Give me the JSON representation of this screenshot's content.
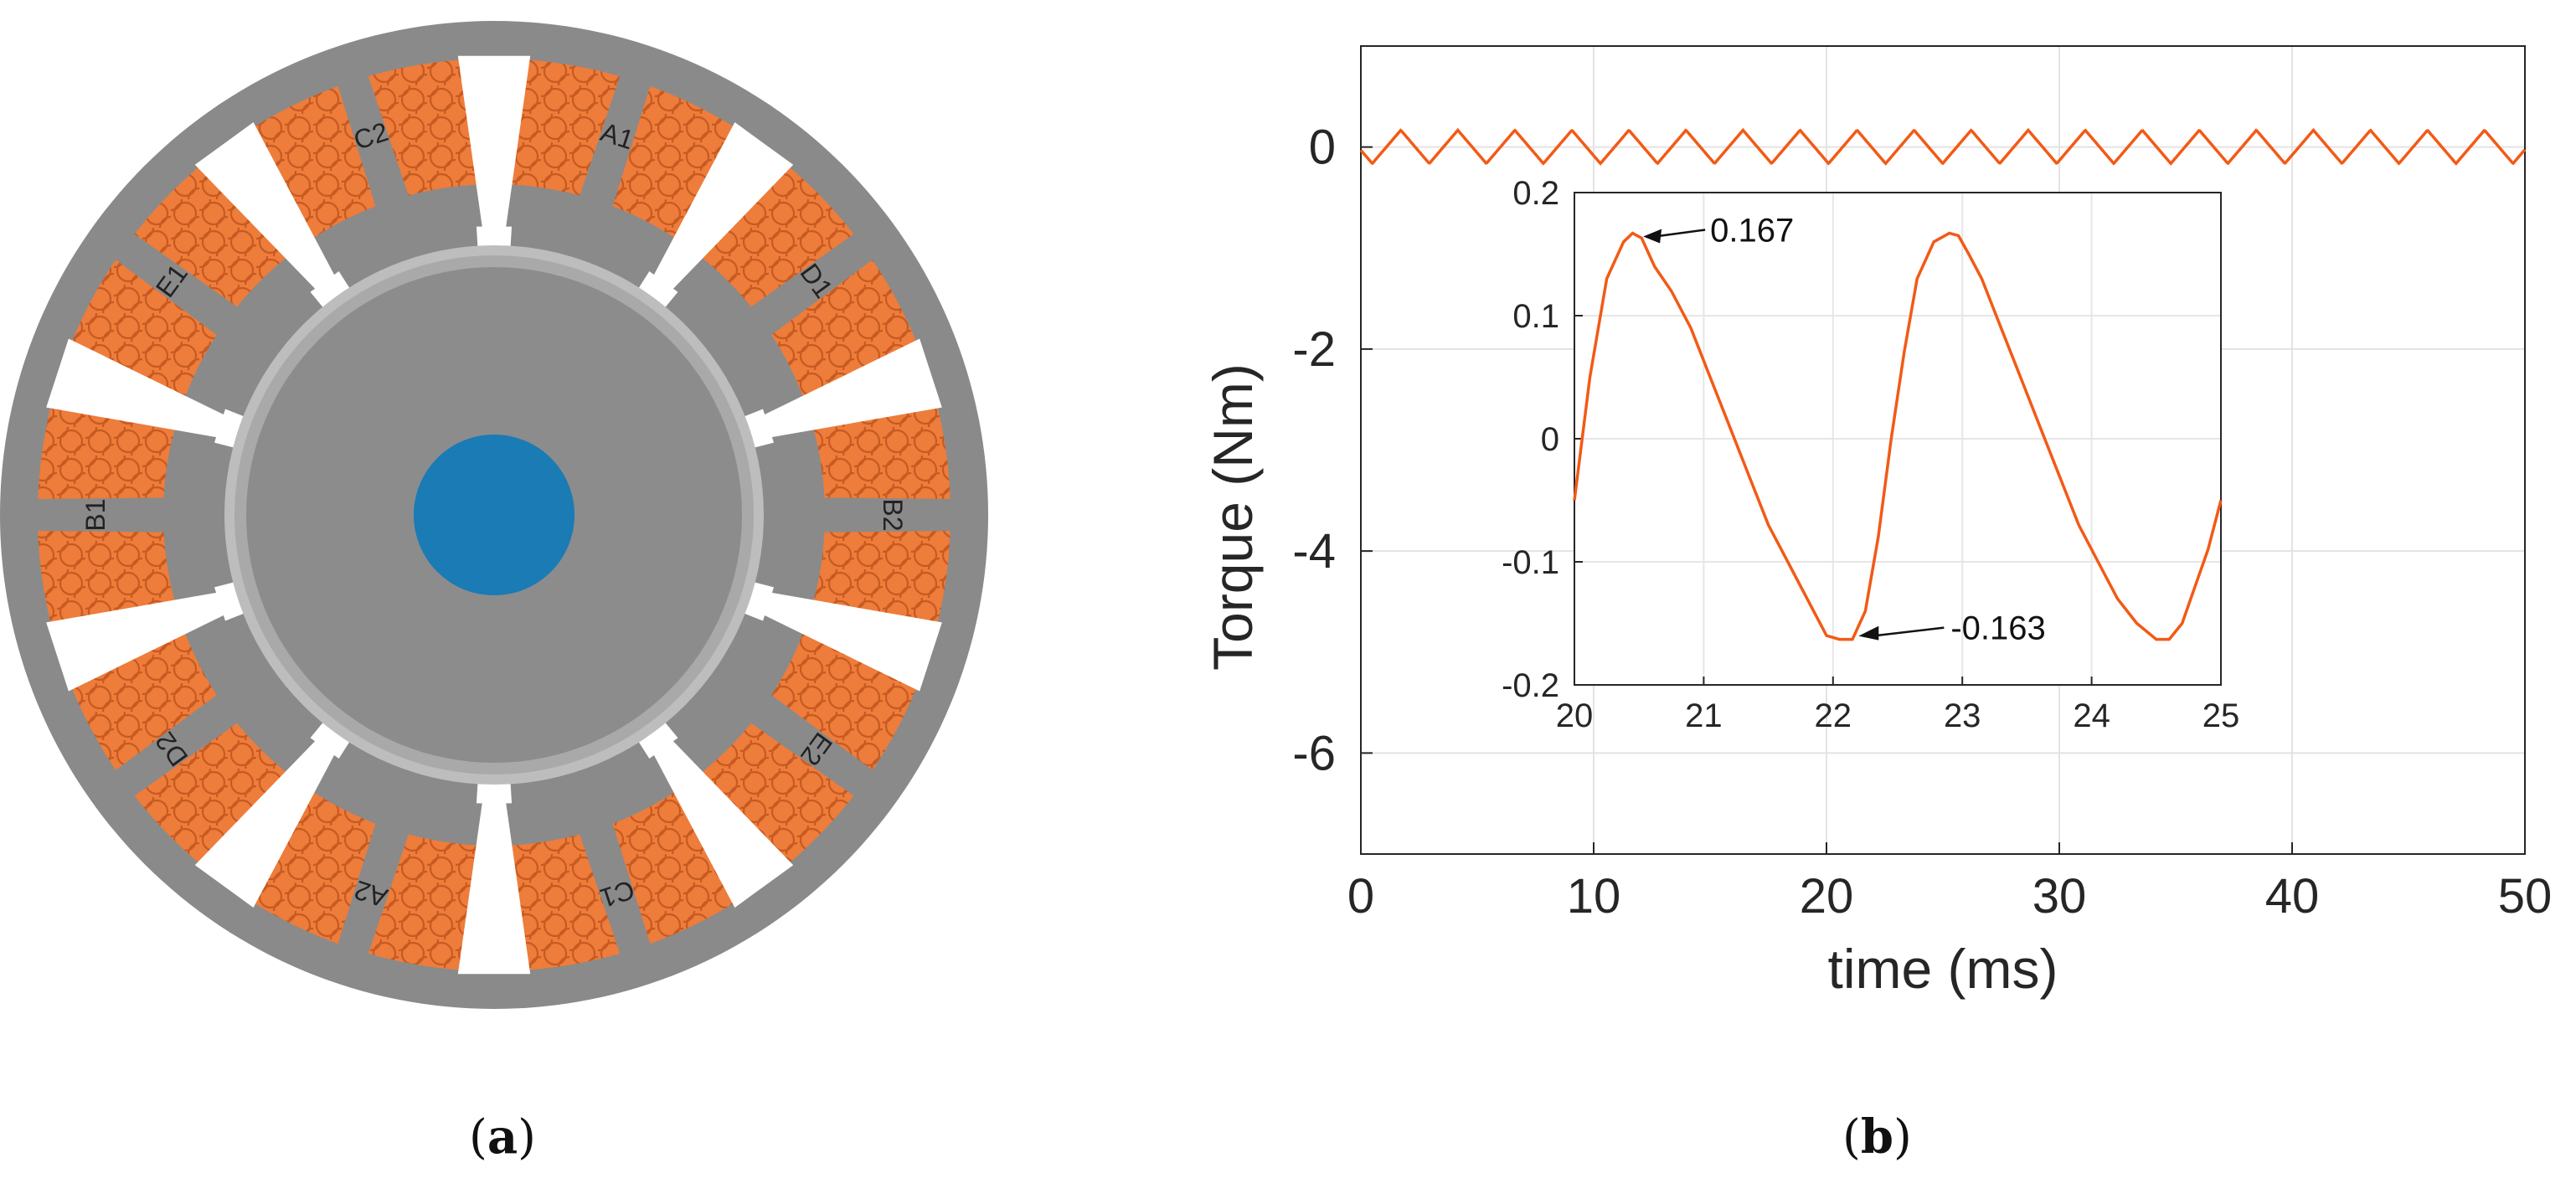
{
  "panel_a": {
    "caption_letter": "a",
    "phase_labels": [
      "A1",
      "D1",
      "B2",
      "E2",
      "C1",
      "A2",
      "D2",
      "B1",
      "E1",
      "C2"
    ],
    "colors": {
      "stator": "#8a8a8a",
      "rotor": "#8c8c8c",
      "coil": "#ee7c3a",
      "coil_pattern": "#c65a22",
      "magnet_gap": "#ffffff",
      "shaft": "#1a7bb5",
      "airgap_ring": "#bdbdbd"
    }
  },
  "panel_b": {
    "caption_letter": "b",
    "line_color": "#f25a16"
  },
  "chart_data": [
    {
      "type": "line",
      "title": "",
      "xlabel": "time (ms)",
      "ylabel": "Torque (Nm)",
      "xlim": [
        0,
        50
      ],
      "ylim": [
        -7,
        1
      ],
      "x_ticks": [
        "0",
        "10",
        "20",
        "30",
        "40",
        "50"
      ],
      "y_ticks": [
        "0",
        "-2",
        "-4",
        "-6"
      ],
      "grid": true,
      "series": [
        {
          "name": "torque",
          "period_ms": 2.45,
          "amplitude_max": 0.167,
          "amplitude_min": -0.163,
          "x_range": [
            0,
            50
          ]
        }
      ]
    },
    {
      "type": "line",
      "title": "",
      "xlabel": "",
      "ylabel": "",
      "xlim": [
        20,
        25
      ],
      "ylim": [
        -0.2,
        0.2
      ],
      "x_ticks": [
        "20",
        "21",
        "22",
        "23",
        "24",
        "25"
      ],
      "y_ticks": [
        "0.2",
        "0.1",
        "0",
        "-0.1",
        "-0.2"
      ],
      "grid": true,
      "series": [
        {
          "name": "torque-zoom",
          "x": [
            20.0,
            20.12,
            20.25,
            20.38,
            20.45,
            20.52,
            20.62,
            20.75,
            20.9,
            21.05,
            21.2,
            21.35,
            21.5,
            21.65,
            21.8,
            21.95,
            22.05,
            22.15,
            22.25,
            22.35,
            22.45,
            22.55,
            22.65,
            22.78,
            22.9,
            22.97,
            23.05,
            23.15,
            23.3,
            23.45,
            23.6,
            23.75,
            23.9,
            24.05,
            24.2,
            24.35,
            24.5,
            24.6,
            24.7,
            24.8,
            24.9,
            25.0
          ],
          "y": [
            -0.05,
            0.05,
            0.13,
            0.16,
            0.167,
            0.163,
            0.14,
            0.12,
            0.09,
            0.05,
            0.01,
            -0.03,
            -0.07,
            -0.1,
            -0.13,
            -0.16,
            -0.163,
            -0.163,
            -0.14,
            -0.08,
            0.0,
            0.07,
            0.13,
            0.16,
            0.167,
            0.165,
            0.15,
            0.13,
            0.09,
            0.05,
            0.01,
            -0.03,
            -0.07,
            -0.1,
            -0.13,
            -0.15,
            -0.163,
            -0.163,
            -0.15,
            -0.12,
            -0.09,
            -0.05
          ]
        }
      ],
      "annotations": [
        {
          "text": "0.167",
          "x": 20.48,
          "y": 0.167
        },
        {
          "text": "-0.163",
          "x": 22.12,
          "y": -0.163
        }
      ]
    }
  ]
}
